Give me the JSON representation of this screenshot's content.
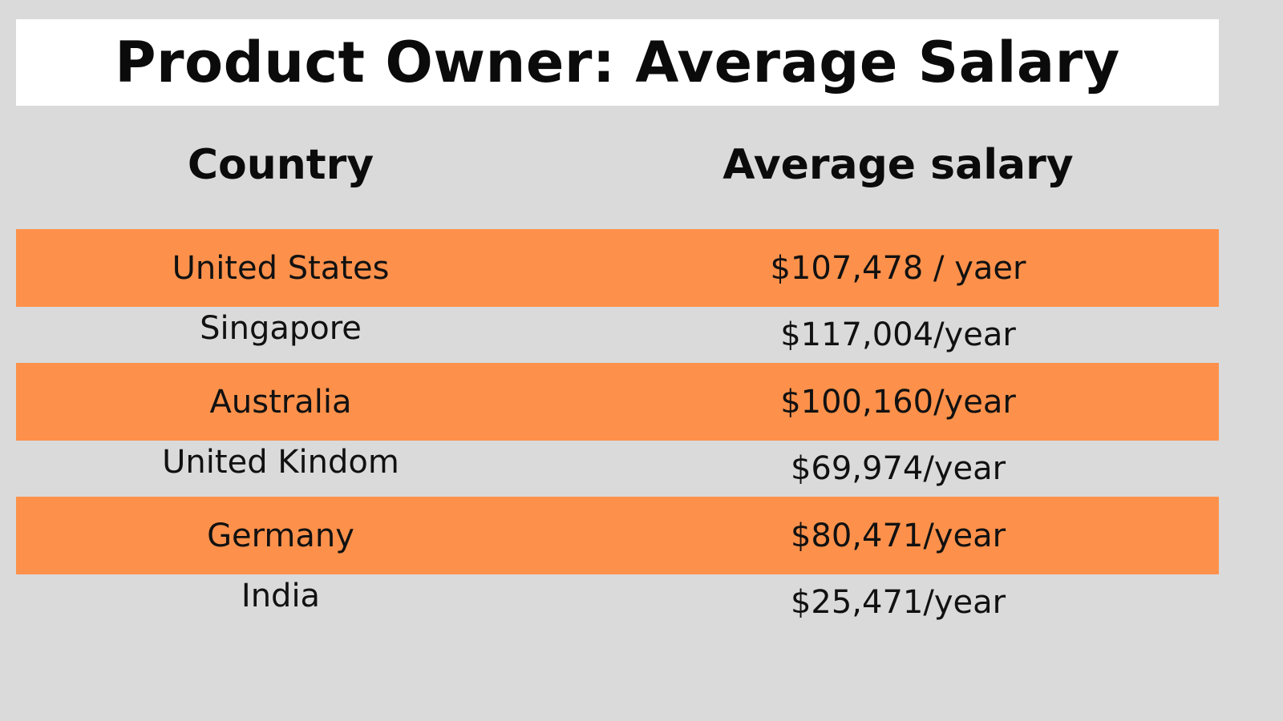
{
  "chart_data": {
    "type": "table",
    "title": "Product Owner: Average Salary",
    "columns": [
      "Country",
      "Average salary"
    ],
    "rows": [
      {
        "country": "United States",
        "salary": "$107,478 / yaer"
      },
      {
        "country": "Singapore",
        "salary": "$117,004/year"
      },
      {
        "country": "Australia",
        "salary": "$100,160/year"
      },
      {
        "country": "United Kindom",
        "salary": "$69,974/year"
      },
      {
        "country": "Germany",
        "salary": "$80,471/year"
      },
      {
        "country": "India",
        "salary": "$25,471/year"
      }
    ],
    "values": [
      107478,
      117004,
      100160,
      69974,
      80471,
      25471
    ],
    "unit": "year",
    "colors": {
      "background": "#dadada",
      "title_banner": "#ffffff",
      "stripe": "#fd914b",
      "text": "#111111"
    }
  }
}
